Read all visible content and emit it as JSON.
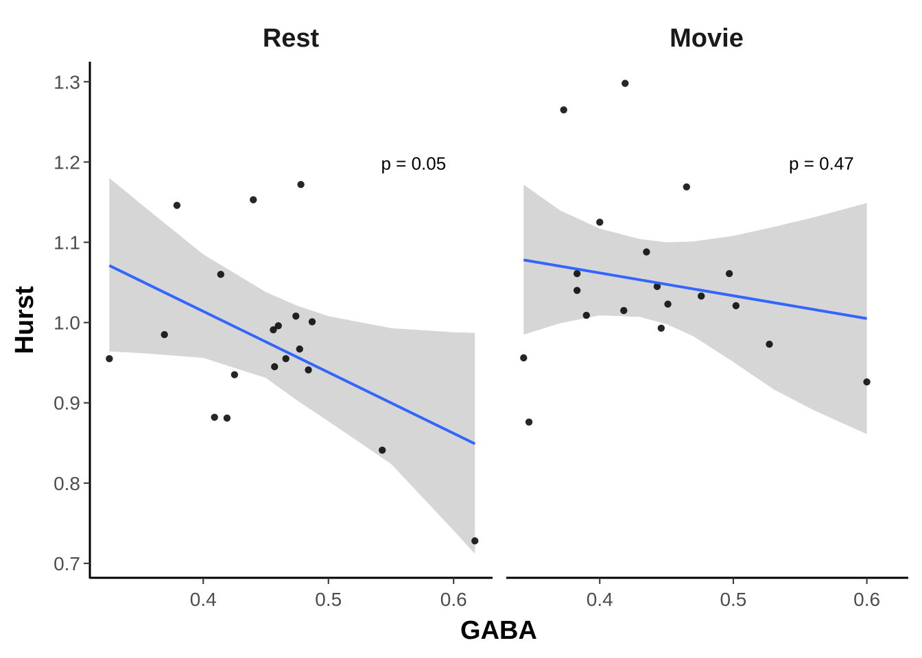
{
  "chart_data": {
    "type": "scatter",
    "xlabel": "GABA",
    "ylabel": "Hurst",
    "ylim": [
      0.682,
      1.325
    ],
    "yticks": [
      0.7,
      0.8,
      0.9,
      1.0,
      1.1,
      1.2,
      1.3
    ],
    "ytick_labels": [
      "0.7",
      "0.8",
      "0.9",
      "1.0",
      "1.1",
      "1.2",
      "1.3"
    ],
    "grid": false,
    "colors": {
      "points": "#000000",
      "line": "#3366ff",
      "ribbon": "#d6d6d6",
      "axis": "#000000"
    },
    "panels": [
      {
        "title": "Rest",
        "xlim": [
          0.31,
          0.63
        ],
        "xticks": [
          0.4,
          0.5,
          0.6
        ],
        "xtick_labels": [
          "0.4",
          "0.5",
          "0.6"
        ],
        "annotation": {
          "text": "p =  0.05",
          "x": 0.568,
          "y": 1.198
        },
        "points": [
          [
            0.325,
            0.955
          ],
          [
            0.369,
            0.985
          ],
          [
            0.379,
            1.146
          ],
          [
            0.409,
            0.882
          ],
          [
            0.414,
            1.06
          ],
          [
            0.419,
            0.881
          ],
          [
            0.425,
            0.935
          ],
          [
            0.44,
            1.153
          ],
          [
            0.456,
            0.991
          ],
          [
            0.457,
            0.945
          ],
          [
            0.46,
            0.996
          ],
          [
            0.466,
            0.955
          ],
          [
            0.474,
            1.008
          ],
          [
            0.477,
            0.967
          ],
          [
            0.478,
            1.172
          ],
          [
            0.484,
            0.941
          ],
          [
            0.487,
            1.001
          ],
          [
            0.543,
            0.841
          ],
          [
            0.617,
            0.728
          ]
        ],
        "fit": {
          "x": [
            0.325,
            0.617
          ],
          "y": [
            1.071,
            0.849
          ]
        },
        "ribbon": {
          "x": [
            0.325,
            0.35,
            0.4,
            0.45,
            0.475,
            0.5,
            0.55,
            0.6,
            0.617
          ],
          "upper": [
            1.18,
            1.148,
            1.085,
            1.038,
            1.021,
            1.008,
            0.993,
            0.988,
            0.987
          ],
          "lower": [
            0.964,
            0.962,
            0.956,
            0.931,
            0.903,
            0.877,
            0.824,
            0.741,
            0.712
          ]
        }
      },
      {
        "title": "Movie",
        "xlim": [
          0.33,
          0.63
        ],
        "xticks": [
          0.4,
          0.5,
          0.6
        ],
        "xtick_labels": [
          "0.4",
          "0.5",
          "0.6"
        ],
        "annotation": {
          "text": "p =  0.47",
          "x": 0.566,
          "y": 1.198
        },
        "points": [
          [
            0.343,
            0.956
          ],
          [
            0.347,
            0.876
          ],
          [
            0.373,
            1.265
          ],
          [
            0.383,
            1.061
          ],
          [
            0.383,
            1.04
          ],
          [
            0.39,
            1.009
          ],
          [
            0.4,
            1.125
          ],
          [
            0.419,
            1.298
          ],
          [
            0.418,
            1.015
          ],
          [
            0.435,
            1.088
          ],
          [
            0.443,
            1.045
          ],
          [
            0.446,
            0.993
          ],
          [
            0.451,
            1.023
          ],
          [
            0.465,
            1.169
          ],
          [
            0.476,
            1.033
          ],
          [
            0.497,
            1.061
          ],
          [
            0.502,
            1.021
          ],
          [
            0.527,
            0.973
          ],
          [
            0.6,
            0.926
          ]
        ],
        "fit": {
          "x": [
            0.343,
            0.6
          ],
          "y": [
            1.078,
            1.005
          ]
        },
        "ribbon": {
          "x": [
            0.343,
            0.37,
            0.4,
            0.43,
            0.45,
            0.47,
            0.5,
            0.53,
            0.56,
            0.6
          ],
          "upper": [
            1.172,
            1.14,
            1.117,
            1.104,
            1.1,
            1.101,
            1.108,
            1.119,
            1.131,
            1.149
          ],
          "lower": [
            0.985,
            0.999,
            1.009,
            1.007,
            0.998,
            0.983,
            0.951,
            0.917,
            0.891,
            0.861
          ]
        }
      }
    ]
  }
}
